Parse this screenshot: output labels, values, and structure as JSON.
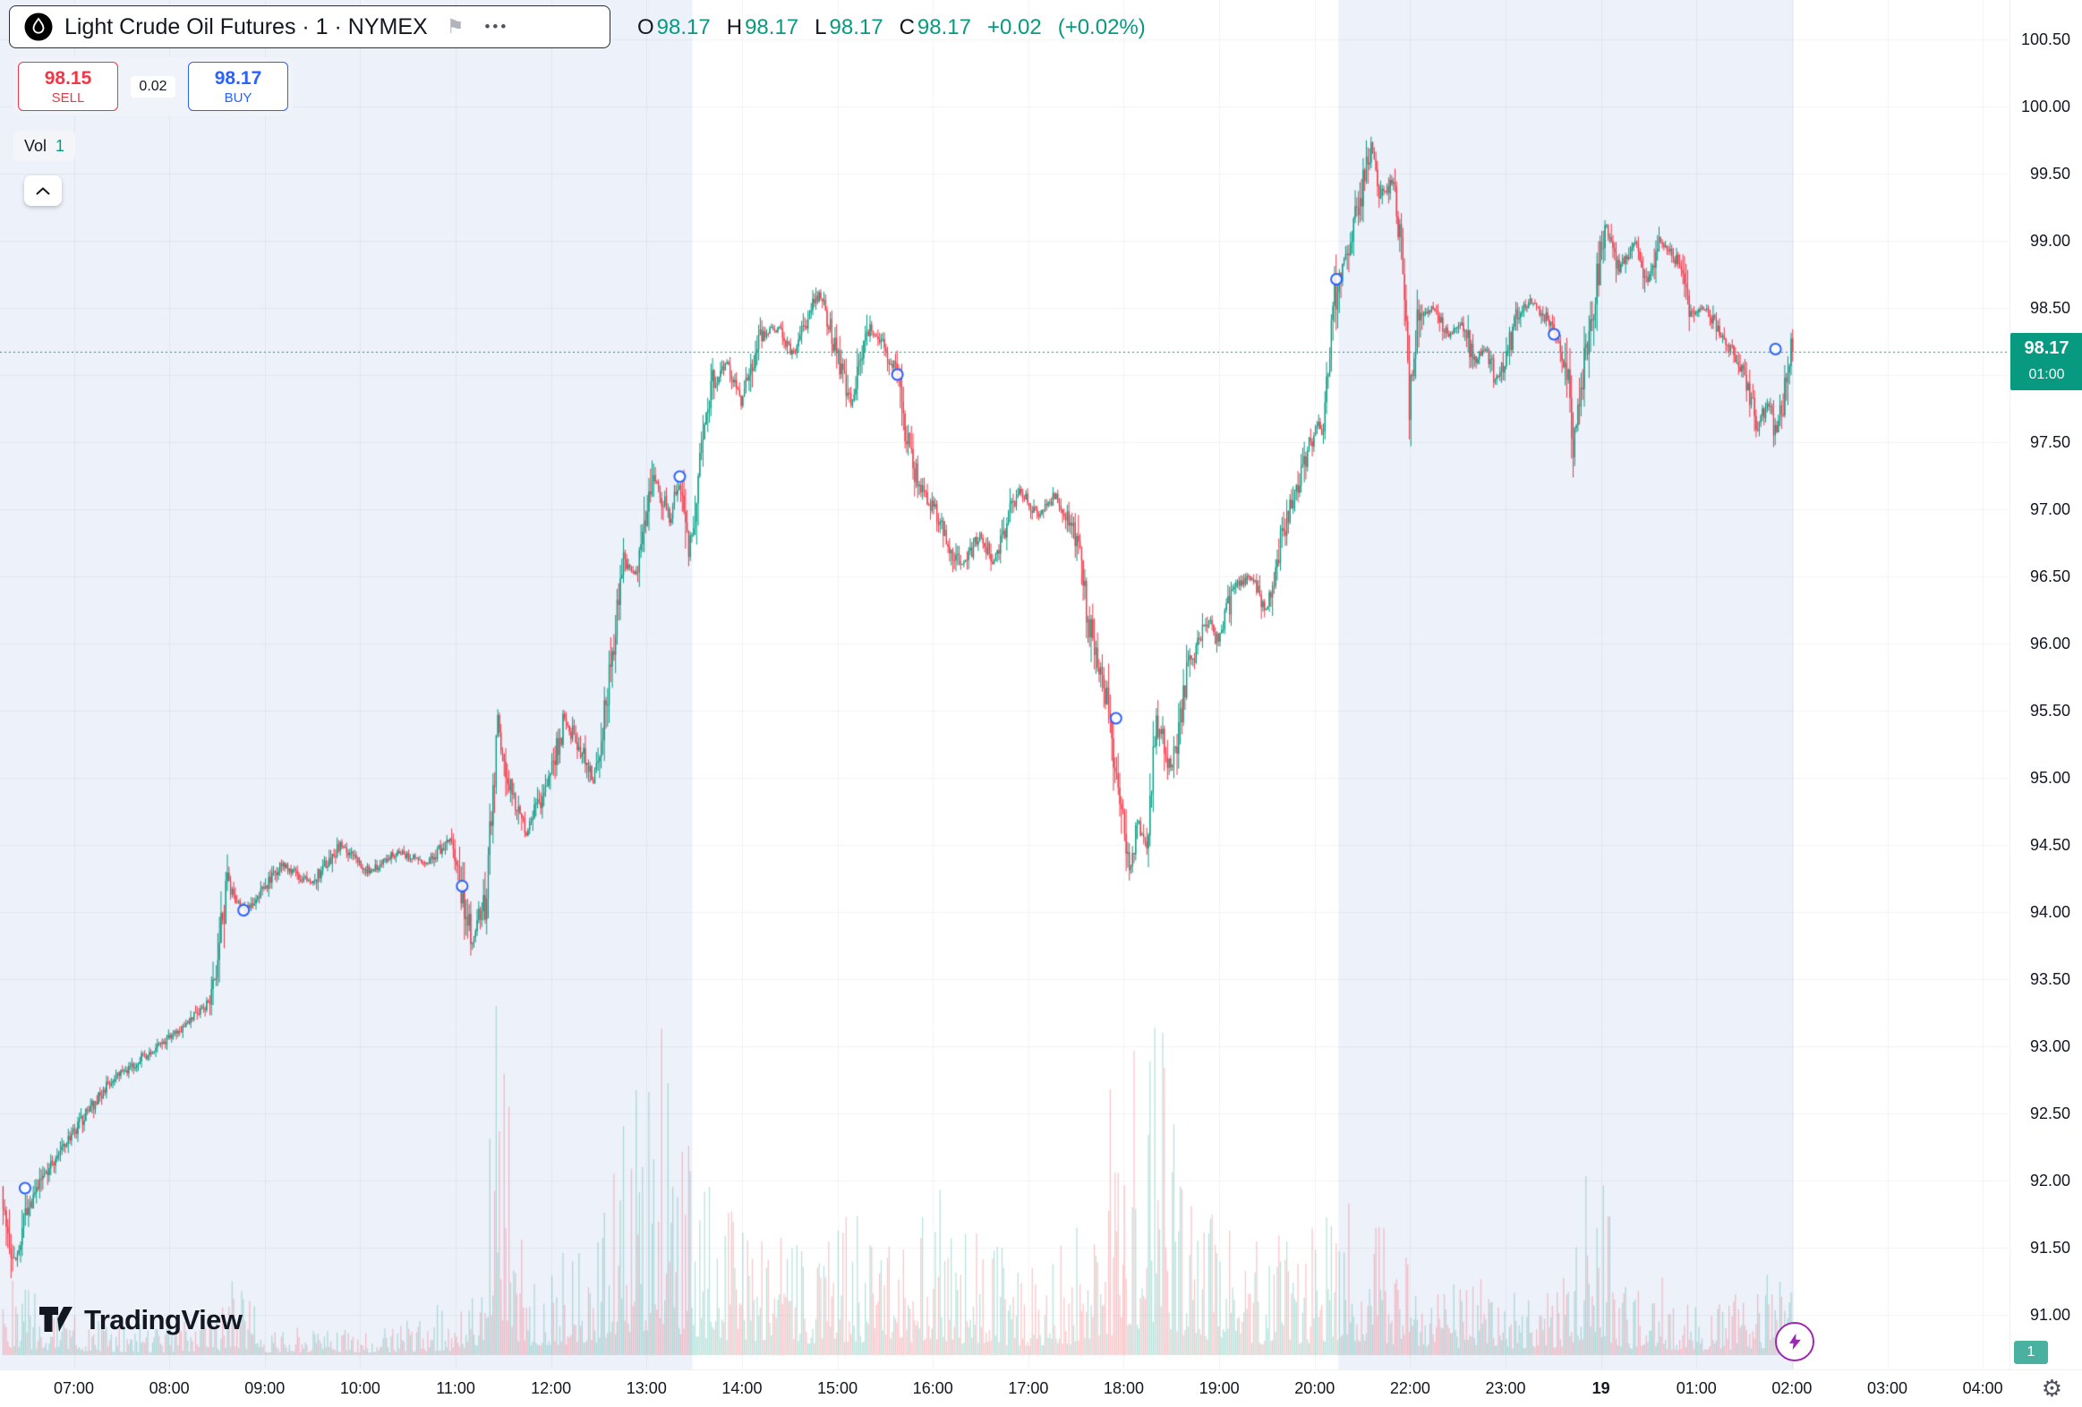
{
  "header": {
    "symbol_pill": {
      "title": "Light Crude Oil Futures · 1 · NYMEX"
    },
    "ohlc": {
      "o_label": "O",
      "o_value": "98.17",
      "h_label": "H",
      "h_value": "98.17",
      "l_label": "L",
      "l_value": "98.17",
      "c_label": "C",
      "c_value": "98.17",
      "change": "+0.02",
      "change_pct": "(+0.02%)"
    },
    "trade_widget": {
      "sell_price": "98.15",
      "sell_label": "SELL",
      "spread": "0.02",
      "buy_price": "98.17",
      "buy_label": "BUY"
    },
    "volume_row": {
      "label": "Vol",
      "value": "1"
    }
  },
  "axes": {
    "last_price_badge": {
      "price": "98.17",
      "countdown": "01:00"
    },
    "volume_axis_badge": "1"
  },
  "footer": {
    "logo_text": "TradingView"
  },
  "colors": {
    "up": "#089981",
    "down": "#f23645",
    "buy_blue": "#2962ff",
    "sell_red": "#f23645",
    "text": "#131722",
    "muted": "#787b86",
    "session_band": "#edf1fa",
    "grid": "rgba(42,46,57,0.05)",
    "last_price_line": "#089981",
    "marker_blue": "#2962ff",
    "vol_up": "rgba(8,153,129,0.28)",
    "vol_down": "rgba(242,54,69,0.28)",
    "boost_purple": "#9c27b0"
  },
  "chart_data": {
    "type": "candlestick",
    "title": "Light Crude Oil Futures, 1, NYMEX",
    "interval_minutes": 1,
    "last_price": 98.17,
    "change": 0.02,
    "change_pct": 0.02,
    "price_axis": {
      "tick_labels": [
        "100.50",
        "100.00",
        "99.50",
        "99.00",
        "98.50",
        "98.00",
        "97.50",
        "97.00",
        "96.50",
        "96.00",
        "95.50",
        "95.00",
        "94.50",
        "94.00",
        "93.50",
        "93.00",
        "92.50",
        "92.00",
        "91.50",
        "91.00"
      ],
      "visible_range": [
        90.59,
        100.79
      ]
    },
    "time_axis": {
      "ticks": [
        {
          "label": "07:00"
        },
        {
          "label": "08:00"
        },
        {
          "label": "09:00"
        },
        {
          "label": "10:00"
        },
        {
          "label": "11:00"
        },
        {
          "label": "12:00"
        },
        {
          "label": "13:00"
        },
        {
          "label": "14:00"
        },
        {
          "label": "15:00"
        },
        {
          "label": "16:00"
        },
        {
          "label": "17:00"
        },
        {
          "label": "18:00"
        },
        {
          "label": "19:00"
        },
        {
          "label": "20:00"
        },
        {
          "label": "22:00"
        },
        {
          "label": "23:00"
        },
        {
          "label": "19",
          "bold": true
        },
        {
          "label": "01:00"
        },
        {
          "label": "02:00"
        },
        {
          "label": "03:00"
        },
        {
          "label": "04:00"
        }
      ],
      "visible_hour_range": [
        -0.774,
        20.28
      ],
      "data_hour_range": [
        -0.75,
        18.0
      ]
    },
    "sessions_shaded_hours": [
      [
        -0.774,
        6.48
      ],
      [
        13.25,
        18.02
      ]
    ],
    "price_path_anchors": [
      [
        -0.75,
        91.95
      ],
      [
        -0.62,
        91.35
      ],
      [
        -0.5,
        91.7
      ],
      [
        -0.3,
        92.05
      ],
      [
        0,
        92.35
      ],
      [
        0.35,
        92.7
      ],
      [
        0.7,
        92.9
      ],
      [
        1.1,
        93.1
      ],
      [
        1.45,
        93.35
      ],
      [
        1.62,
        94.2
      ],
      [
        1.8,
        94.0
      ],
      [
        2.2,
        94.35
      ],
      [
        2.5,
        94.2
      ],
      [
        2.8,
        94.5
      ],
      [
        3.1,
        94.3
      ],
      [
        3.4,
        94.45
      ],
      [
        3.7,
        94.35
      ],
      [
        3.95,
        94.55
      ],
      [
        4.06,
        94.2
      ],
      [
        4.18,
        93.75
      ],
      [
        4.32,
        94.1
      ],
      [
        4.45,
        95.35
      ],
      [
        4.6,
        94.9
      ],
      [
        4.75,
        94.6
      ],
      [
        5.0,
        95.0
      ],
      [
        5.15,
        95.45
      ],
      [
        5.35,
        95.15
      ],
      [
        5.45,
        94.95
      ],
      [
        5.6,
        95.6
      ],
      [
        5.75,
        96.6
      ],
      [
        5.9,
        96.5
      ],
      [
        6.1,
        97.25
      ],
      [
        6.25,
        96.9
      ],
      [
        6.34,
        97.2
      ],
      [
        6.45,
        96.7
      ],
      [
        6.68,
        97.9
      ],
      [
        6.85,
        98.1
      ],
      [
        7.0,
        97.8
      ],
      [
        7.2,
        98.3
      ],
      [
        7.4,
        98.35
      ],
      [
        7.55,
        98.15
      ],
      [
        7.7,
        98.45
      ],
      [
        7.83,
        98.6
      ],
      [
        8.0,
        98.15
      ],
      [
        8.15,
        97.75
      ],
      [
        8.35,
        98.35
      ],
      [
        8.5,
        98.2
      ],
      [
        8.62,
        98.0
      ],
      [
        8.8,
        97.3
      ],
      [
        9.05,
        96.95
      ],
      [
        9.3,
        96.55
      ],
      [
        9.5,
        96.8
      ],
      [
        9.65,
        96.6
      ],
      [
        9.9,
        97.15
      ],
      [
        10.1,
        96.95
      ],
      [
        10.3,
        97.1
      ],
      [
        10.5,
        96.8
      ],
      [
        10.65,
        96.1
      ],
      [
        10.85,
        95.5
      ],
      [
        11.0,
        94.6
      ],
      [
        11.07,
        94.3
      ],
      [
        11.15,
        94.65
      ],
      [
        11.25,
        94.5
      ],
      [
        11.35,
        95.45
      ],
      [
        11.5,
        95.05
      ],
      [
        11.7,
        95.85
      ],
      [
        11.9,
        96.2
      ],
      [
        12.0,
        96.0
      ],
      [
        12.15,
        96.4
      ],
      [
        12.35,
        96.5
      ],
      [
        12.5,
        96.25
      ],
      [
        12.7,
        96.9
      ],
      [
        12.85,
        97.2
      ],
      [
        12.95,
        97.5
      ],
      [
        13.1,
        97.65
      ],
      [
        13.22,
        98.6
      ],
      [
        13.35,
        98.9
      ],
      [
        13.45,
        99.2
      ],
      [
        13.6,
        99.7
      ],
      [
        13.72,
        99.3
      ],
      [
        13.82,
        99.45
      ],
      [
        13.92,
        99.0
      ],
      [
        14.0,
        97.8
      ],
      [
        14.1,
        98.45
      ],
      [
        14.25,
        98.5
      ],
      [
        14.4,
        98.3
      ],
      [
        14.55,
        98.4
      ],
      [
        14.68,
        98.1
      ],
      [
        14.8,
        98.2
      ],
      [
        14.9,
        97.95
      ],
      [
        15.0,
        98.1
      ],
      [
        15.15,
        98.5
      ],
      [
        15.3,
        98.55
      ],
      [
        15.45,
        98.4
      ],
      [
        15.55,
        98.3
      ],
      [
        15.65,
        98.05
      ],
      [
        15.72,
        97.45
      ],
      [
        15.82,
        98.0
      ],
      [
        15.95,
        98.6
      ],
      [
        16.05,
        99.1
      ],
      [
        16.2,
        98.8
      ],
      [
        16.35,
        99.0
      ],
      [
        16.5,
        98.7
      ],
      [
        16.62,
        99.0
      ],
      [
        16.75,
        98.9
      ],
      [
        16.85,
        98.8
      ],
      [
        16.95,
        98.45
      ],
      [
        17.1,
        98.5
      ],
      [
        17.25,
        98.3
      ],
      [
        17.4,
        98.15
      ],
      [
        17.55,
        97.9
      ],
      [
        17.65,
        97.6
      ],
      [
        17.75,
        97.8
      ],
      [
        17.85,
        97.55
      ],
      [
        17.93,
        97.9
      ],
      [
        18.0,
        98.17
      ]
    ],
    "volume_envelope": [
      [
        -0.75,
        70
      ],
      [
        -0.3,
        45
      ],
      [
        0,
        35
      ],
      [
        0.8,
        22
      ],
      [
        1.5,
        35
      ],
      [
        1.62,
        80
      ],
      [
        2.0,
        25
      ],
      [
        2.6,
        20
      ],
      [
        3.3,
        25
      ],
      [
        4.0,
        40
      ],
      [
        4.3,
        90
      ],
      [
        4.45,
        370
      ],
      [
        4.6,
        130
      ],
      [
        4.8,
        85
      ],
      [
        5.1,
        95
      ],
      [
        5.5,
        110
      ],
      [
        5.75,
        200
      ],
      [
        6.0,
        230
      ],
      [
        6.15,
        290
      ],
      [
        6.3,
        185
      ],
      [
        6.5,
        165
      ],
      [
        6.7,
        145
      ],
      [
        7.0,
        115
      ],
      [
        7.4,
        150
      ],
      [
        7.6,
        105
      ],
      [
        7.9,
        115
      ],
      [
        8.1,
        125
      ],
      [
        8.4,
        105
      ],
      [
        8.7,
        115
      ],
      [
        9.0,
        135
      ],
      [
        9.3,
        105
      ],
      [
        9.6,
        95
      ],
      [
        10.0,
        85
      ],
      [
        10.4,
        95
      ],
      [
        10.7,
        130
      ],
      [
        10.9,
        170
      ],
      [
        11.05,
        290
      ],
      [
        11.2,
        210
      ],
      [
        11.35,
        310
      ],
      [
        11.6,
        155
      ],
      [
        12.0,
        115
      ],
      [
        12.4,
        95
      ],
      [
        12.8,
        105
      ],
      [
        13.1,
        115
      ],
      [
        13.25,
        145
      ],
      [
        13.6,
        115
      ],
      [
        14.0,
        85
      ],
      [
        14.5,
        65
      ],
      [
        15.0,
        58
      ],
      [
        15.5,
        52
      ],
      [
        15.95,
        190
      ],
      [
        16.2,
        60
      ],
      [
        16.6,
        48
      ],
      [
        17.0,
        42
      ],
      [
        17.5,
        52
      ],
      [
        17.85,
        75
      ],
      [
        18.0,
        60
      ]
    ],
    "markers_blue_circles": [
      [
        -0.52,
        91.94
      ],
      [
        1.77,
        94.01
      ],
      [
        4.06,
        94.19
      ],
      [
        6.34,
        97.24
      ],
      [
        8.62,
        98.0
      ],
      [
        10.91,
        95.44
      ],
      [
        13.22,
        98.71
      ],
      [
        15.5,
        98.3
      ],
      [
        17.82,
        98.19
      ]
    ],
    "noise_seed": 7
  }
}
